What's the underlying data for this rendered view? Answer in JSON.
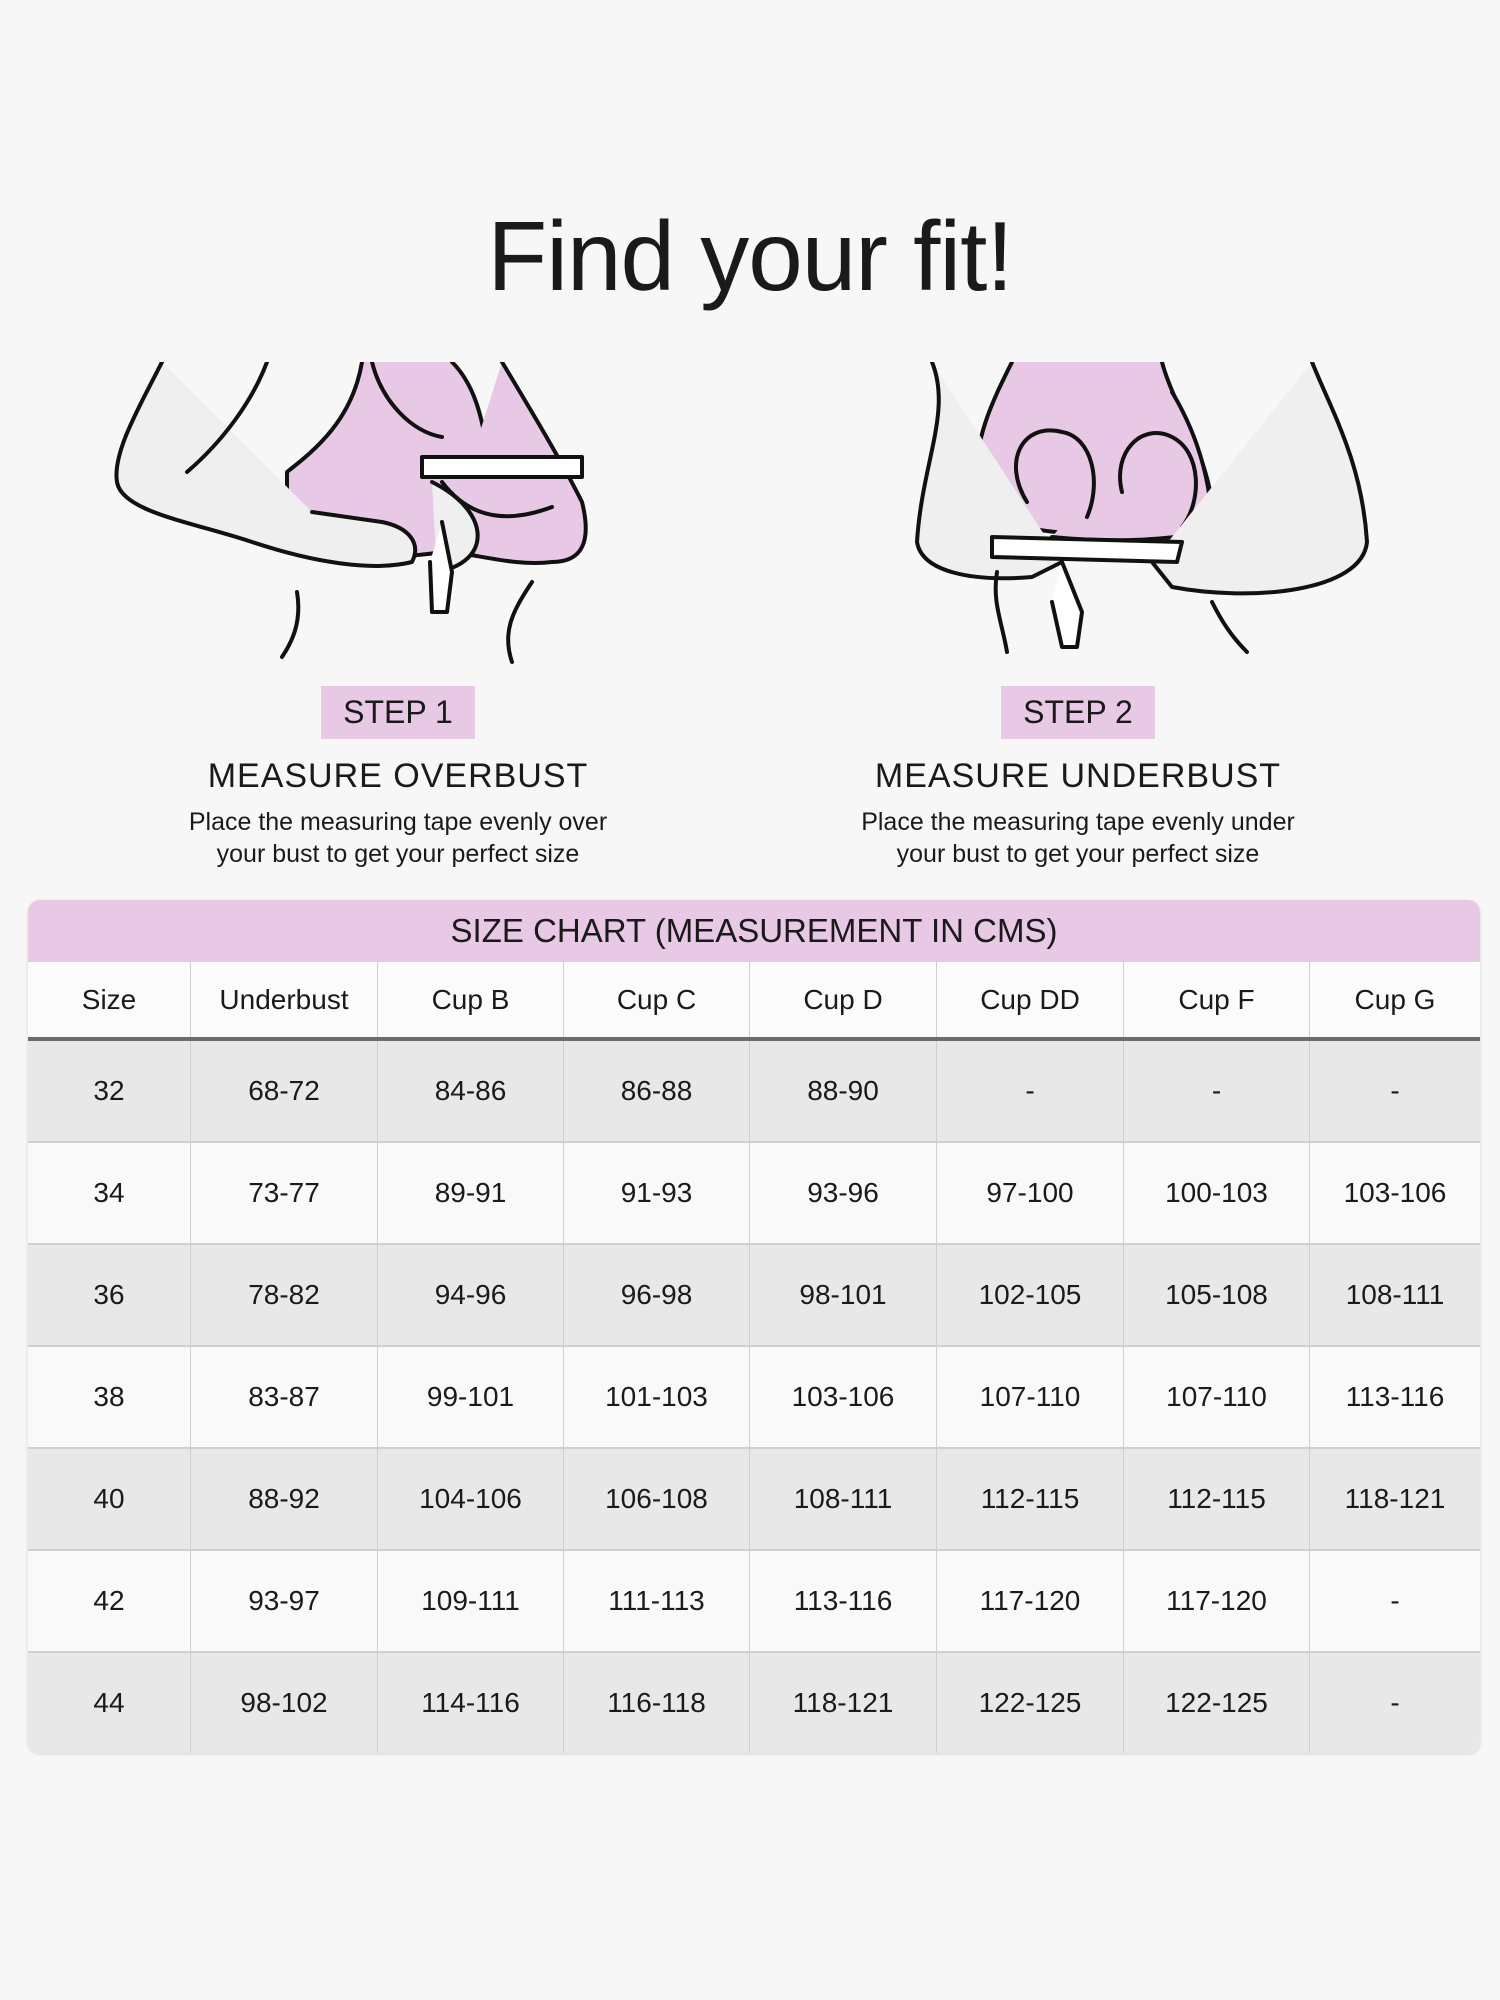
{
  "title": "Find your fit!",
  "colors": {
    "accent": "#e8c9e5",
    "background": "#f7f7f7",
    "shaded_row": "#e8e8e8"
  },
  "steps": [
    {
      "badge": "STEP 1",
      "heading": "MEASURE OVERBUST",
      "desc_line1": "Place the measuring tape evenly over",
      "desc_line2": "your bust to get your perfect size",
      "icon": "overbust-measuring-illustration"
    },
    {
      "badge": "STEP 2",
      "heading": "MEASURE UNDERBUST",
      "desc_line1": "Place the measuring tape evenly under",
      "desc_line2": "your bust to get your perfect size",
      "icon": "underbust-measuring-illustration"
    }
  ],
  "size_chart": {
    "title": "SIZE CHART (MEASUREMENT IN CMS)",
    "columns": [
      "Size",
      "Underbust",
      "Cup B",
      "Cup C",
      "Cup D",
      "Cup DD",
      "Cup F",
      "Cup G"
    ],
    "rows": [
      [
        "32",
        "68-72",
        "84-86",
        "86-88",
        "88-90",
        "-",
        "-",
        "-"
      ],
      [
        "34",
        "73-77",
        "89-91",
        "91-93",
        "93-96",
        "97-100",
        "100-103",
        "103-106"
      ],
      [
        "36",
        "78-82",
        "94-96",
        "96-98",
        "98-101",
        "102-105",
        "105-108",
        "108-111"
      ],
      [
        "38",
        "83-87",
        "99-101",
        "101-103",
        "103-106",
        "107-110",
        "107-110",
        "113-116"
      ],
      [
        "40",
        "88-92",
        "104-106",
        "106-108",
        "108-111",
        "112-115",
        "112-115",
        "118-121"
      ],
      [
        "42",
        "93-97",
        "109-111",
        "111-113",
        "113-116",
        "117-120",
        "117-120",
        "-"
      ],
      [
        "44",
        "98-102",
        "114-116",
        "116-118",
        "118-121",
        "122-125",
        "122-125",
        "-"
      ]
    ]
  }
}
